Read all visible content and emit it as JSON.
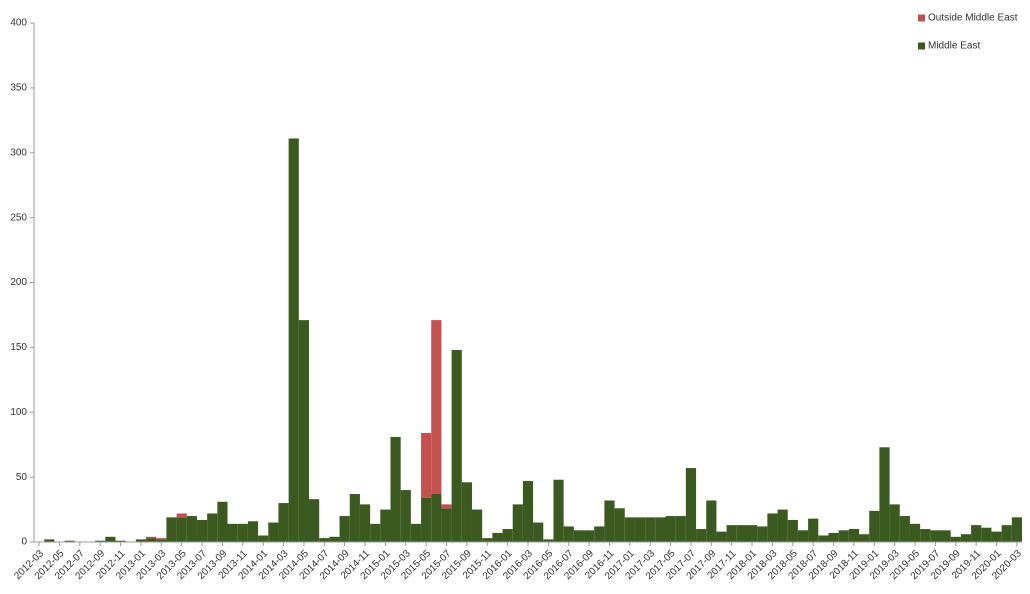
{
  "chart_data": {
    "type": "stacked_bar",
    "categories": [
      "2012-03",
      null,
      "2012-05",
      null,
      "2012-07",
      null,
      "2012-09",
      null,
      "2012-11",
      null,
      "2013-01",
      null,
      "2013-03",
      null,
      "2013-05",
      null,
      "2013-07",
      null,
      "2013-09",
      null,
      "2013-11",
      null,
      "2014-01",
      null,
      "2014-03",
      null,
      "2014-05",
      null,
      "2014-07",
      null,
      "2014-09",
      null,
      "2014-11",
      null,
      "2015-01",
      null,
      "2015-03",
      null,
      "2015-05",
      null,
      "2015-07",
      null,
      "2015-09",
      null,
      "2015-11",
      null,
      "2016-01",
      null,
      "2016-03",
      null,
      "2016-05",
      null,
      "2016-07",
      null,
      "2016-09",
      null,
      "2016-11",
      null,
      "2017-01",
      null,
      "2017-03",
      null,
      "2017-05",
      null,
      "2017-07",
      null,
      "2017-09",
      null,
      "2017-11",
      null,
      "2018-01",
      null,
      "2018-03",
      null,
      "2018-05",
      null,
      "2018-07",
      null,
      "2018-09",
      null,
      "2018-11",
      null,
      "2019-01",
      null,
      "2019-03",
      null,
      "2019-05",
      null,
      "2019-07",
      null,
      "2019-09",
      null,
      "2019-11",
      null,
      "2020-01",
      null,
      "2020-03"
    ],
    "series": [
      {
        "name": "Middle East",
        "color": "#3b5a1f",
        "values": [
          0,
          2,
          0,
          1,
          0,
          0,
          1,
          4,
          1,
          0,
          2,
          3,
          2,
          19,
          19,
          20,
          17,
          22,
          31,
          14,
          14,
          16,
          5,
          15,
          30,
          311,
          171,
          33,
          3,
          4,
          20,
          37,
          29,
          14,
          25,
          81,
          40,
          14,
          34,
          37,
          26,
          148,
          46,
          25,
          3,
          7,
          10,
          29,
          47,
          15,
          2,
          48,
          12,
          9,
          9,
          12,
          32,
          26,
          19,
          19,
          19,
          19,
          20,
          20,
          57,
          10,
          32,
          8,
          13,
          13,
          13,
          12,
          22,
          25,
          17,
          9,
          18,
          5,
          7,
          9,
          10,
          6,
          24,
          73,
          29,
          20,
          14,
          10,
          9,
          9,
          4,
          6,
          13,
          11,
          8,
          13,
          19
        ]
      },
      {
        "name": "Outside Middle East",
        "color": "#c4514f",
        "values": [
          0,
          0,
          0,
          0,
          0,
          0,
          0,
          0,
          0,
          0,
          0,
          1,
          1,
          0,
          3,
          0,
          0,
          0,
          0,
          0,
          0,
          0,
          0,
          0,
          0,
          0,
          0,
          0,
          0,
          0,
          0,
          0,
          0,
          0,
          0,
          0,
          0,
          0,
          50,
          134,
          3,
          0,
          0,
          0,
          0,
          0,
          0,
          0,
          0,
          0,
          0,
          0,
          0,
          0,
          0,
          0,
          0,
          0,
          0,
          0,
          0,
          0,
          0,
          0,
          0,
          0,
          0,
          0,
          0,
          0,
          0,
          0,
          0,
          0,
          0,
          0,
          0,
          0,
          0,
          0,
          0,
          0,
          0,
          0,
          0,
          0,
          0,
          0,
          0,
          0,
          0,
          0,
          0,
          0,
          0,
          0,
          0
        ]
      }
    ],
    "ylim": [
      0,
      400
    ],
    "yticks": [
      0,
      50,
      100,
      150,
      200,
      250,
      300,
      350,
      400
    ],
    "legend": "top-right"
  }
}
